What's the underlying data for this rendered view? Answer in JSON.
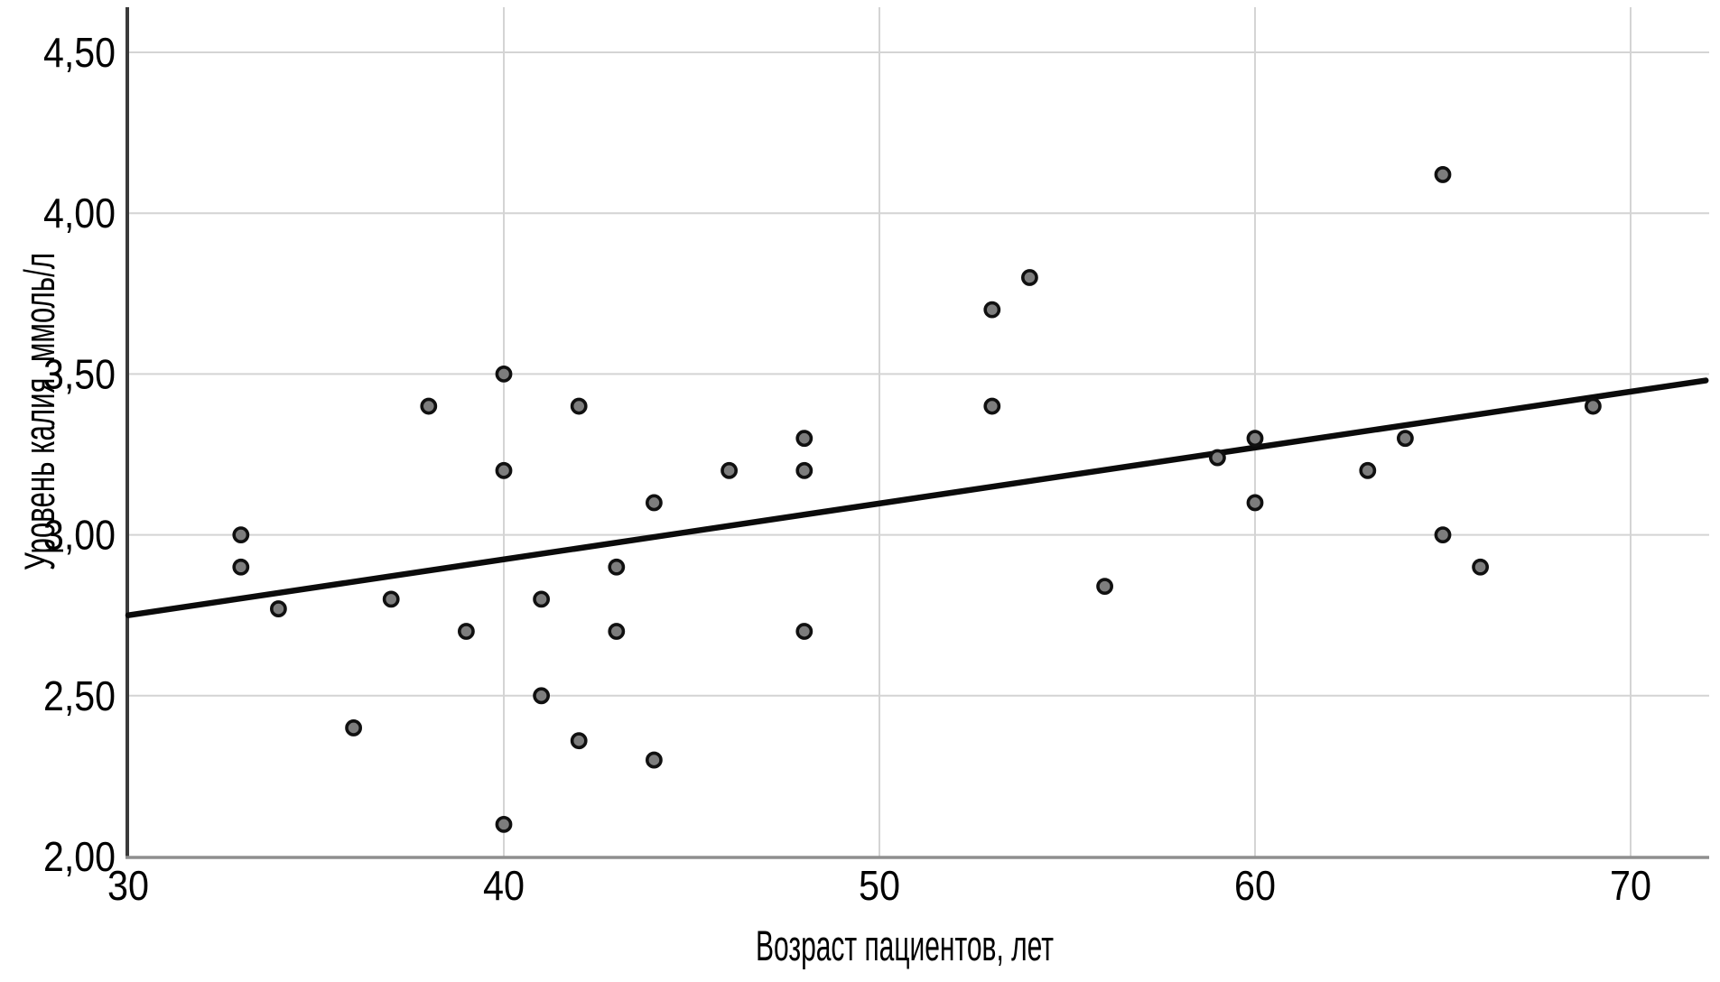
{
  "chart_data": {
    "type": "scatter",
    "title": "",
    "xlabel": "Возраст пациентов, лет",
    "ylabel": "Уровень калия, ммоль/л",
    "xlim": [
      30,
      72
    ],
    "ylim": [
      2.0,
      4.5
    ],
    "grid": true,
    "legend_position": "none",
    "x_ticks": [
      {
        "v": 30,
        "label": "30"
      },
      {
        "v": 40,
        "label": "40"
      },
      {
        "v": 50,
        "label": "50"
      },
      {
        "v": 60,
        "label": "60"
      },
      {
        "v": 70,
        "label": "70"
      }
    ],
    "y_ticks": [
      {
        "v": 2.0,
        "label": "2,00"
      },
      {
        "v": 2.5,
        "label": "2,50"
      },
      {
        "v": 3.0,
        "label": "3,00"
      },
      {
        "v": 3.5,
        "label": "3,50"
      },
      {
        "v": 4.0,
        "label": "4,00"
      },
      {
        "v": 4.5,
        "label": "4,50"
      }
    ],
    "points": [
      [
        33,
        3.0
      ],
      [
        33,
        2.9
      ],
      [
        34,
        2.77
      ],
      [
        36,
        2.4
      ],
      [
        37,
        2.8
      ],
      [
        38,
        3.4
      ],
      [
        39,
        2.7
      ],
      [
        40,
        3.5
      ],
      [
        40,
        3.2
      ],
      [
        40,
        2.1
      ],
      [
        41,
        2.8
      ],
      [
        41,
        2.5
      ],
      [
        42,
        3.4
      ],
      [
        42,
        2.36
      ],
      [
        43,
        2.9
      ],
      [
        43,
        2.7
      ],
      [
        44,
        3.1
      ],
      [
        44,
        2.3
      ],
      [
        46,
        3.2
      ],
      [
        48,
        3.3
      ],
      [
        48,
        3.2
      ],
      [
        48,
        2.7
      ],
      [
        53,
        3.7
      ],
      [
        53,
        3.4
      ],
      [
        54,
        3.8
      ],
      [
        56,
        2.84
      ],
      [
        59,
        3.24
      ],
      [
        60,
        3.3
      ],
      [
        60,
        3.1
      ],
      [
        63,
        3.2
      ],
      [
        64,
        3.3
      ],
      [
        65,
        4.12
      ],
      [
        65,
        3.0
      ],
      [
        66,
        2.9
      ],
      [
        69,
        3.4
      ]
    ],
    "trend_line": {
      "x_start": 30,
      "y_start": 2.75,
      "x_end": 72,
      "y_end": 3.48
    }
  },
  "colors": {
    "background": "#ffffff",
    "gridline": "#d4d4d4",
    "x_axis_line": "#8f8f8f",
    "y_axis_line": "#3a3a3a",
    "marker_fill": "#7d7d7d",
    "marker_stroke": "#101010",
    "trend_line": "#0b0b0b",
    "text": "#000000"
  }
}
